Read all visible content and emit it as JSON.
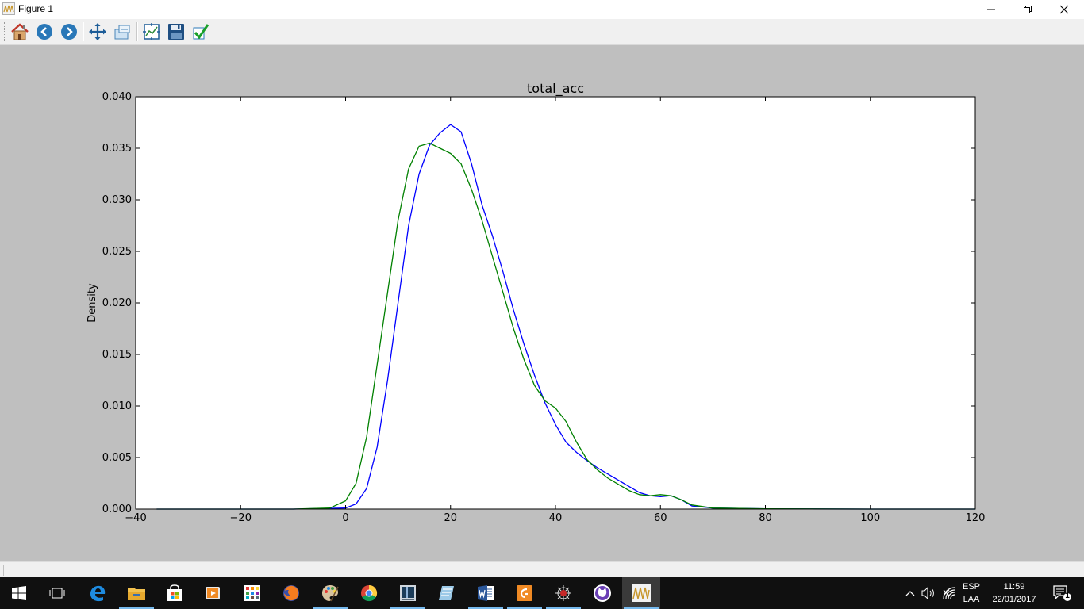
{
  "window": {
    "title": "Figure 1",
    "controls": {
      "minimize": "minimize-icon",
      "maximize": "restore-icon",
      "close": "close-icon"
    }
  },
  "toolbar": {
    "buttons": [
      {
        "name": "home",
        "icon": "home-icon"
      },
      {
        "name": "back",
        "icon": "back-arrow-icon"
      },
      {
        "name": "forward",
        "icon": "forward-arrow-icon"
      },
      {
        "name": "pan",
        "icon": "pan-arrows-icon"
      },
      {
        "name": "zoom",
        "icon": "zoom-rectangle-icon"
      },
      {
        "name": "subplots",
        "icon": "subplots-icon"
      },
      {
        "name": "save",
        "icon": "floppy-disk-icon"
      },
      {
        "name": "edit",
        "icon": "checkmark-icon"
      }
    ]
  },
  "chart_data": {
    "type": "line",
    "title": "total_acc",
    "xlabel": "",
    "ylabel": "Density",
    "xlim": [
      -40,
      120
    ],
    "ylim": [
      0.0,
      0.04
    ],
    "xticks": [
      "−40",
      "−20",
      "0",
      "20",
      "40",
      "60",
      "80",
      "100",
      "120"
    ],
    "yticks": [
      "0.000",
      "0.005",
      "0.010",
      "0.015",
      "0.020",
      "0.025",
      "0.030",
      "0.035",
      "0.040"
    ],
    "grid": false,
    "legend": false,
    "series": [
      {
        "color": "#0000ff",
        "x": [
          -36,
          -10,
          0,
          2,
          4,
          6,
          8,
          10,
          12,
          14,
          16,
          18,
          20,
          22,
          24,
          26,
          28,
          30,
          32,
          34,
          36,
          38,
          40,
          42,
          44,
          46,
          48,
          50,
          52,
          54,
          56,
          58,
          60,
          62,
          64,
          66,
          70,
          80,
          100,
          120
        ],
        "y": [
          0.0,
          0.0,
          0.0001,
          0.0005,
          0.002,
          0.006,
          0.0125,
          0.02,
          0.0275,
          0.0325,
          0.0353,
          0.0365,
          0.0373,
          0.0366,
          0.0335,
          0.0295,
          0.0265,
          0.023,
          0.0193,
          0.016,
          0.013,
          0.0103,
          0.0082,
          0.0065,
          0.0055,
          0.0047,
          0.004,
          0.0034,
          0.0028,
          0.0022,
          0.0016,
          0.0013,
          0.0012,
          0.0013,
          0.0009,
          0.0003,
          0.0001,
          2e-05,
          0.0,
          0.0
        ]
      },
      {
        "color": "#008000",
        "x": [
          -36,
          -10,
          -3,
          0,
          2,
          4,
          6,
          8,
          10,
          12,
          14,
          16,
          18,
          20,
          22,
          24,
          26,
          28,
          30,
          32,
          34,
          36,
          38,
          40,
          42,
          44,
          46,
          48,
          50,
          52,
          54,
          56,
          58,
          60,
          62,
          64,
          66,
          70,
          80,
          100,
          120
        ],
        "y": [
          0.0,
          0.0,
          0.0001,
          0.0008,
          0.0025,
          0.007,
          0.014,
          0.021,
          0.028,
          0.033,
          0.0352,
          0.0355,
          0.035,
          0.0345,
          0.0335,
          0.031,
          0.028,
          0.0245,
          0.021,
          0.0175,
          0.0145,
          0.012,
          0.0105,
          0.0098,
          0.0085,
          0.0065,
          0.0048,
          0.0038,
          0.003,
          0.0024,
          0.0018,
          0.0014,
          0.0013,
          0.0014,
          0.0013,
          0.0009,
          0.0004,
          0.0001,
          2e-05,
          0.0,
          0.0
        ]
      }
    ]
  },
  "statusbar": {
    "text": ""
  },
  "taskbar": {
    "apps": [
      {
        "name": "start",
        "icon": "windows-start-icon"
      },
      {
        "name": "task-view",
        "icon": "task-view-icon"
      },
      {
        "name": "edge",
        "icon": "edge-icon"
      },
      {
        "name": "file-explorer",
        "icon": "folder-icon"
      },
      {
        "name": "store",
        "icon": "store-icon"
      },
      {
        "name": "media-player",
        "icon": "media-player-icon"
      },
      {
        "name": "app-grid",
        "icon": "app-grid-icon"
      },
      {
        "name": "firefox",
        "icon": "firefox-icon"
      },
      {
        "name": "paint",
        "icon": "paint-palette-icon"
      },
      {
        "name": "chrome",
        "icon": "chrome-icon"
      },
      {
        "name": "ide",
        "icon": "ide-icon"
      },
      {
        "name": "notes",
        "icon": "notes-icon"
      },
      {
        "name": "word",
        "icon": "word-icon"
      },
      {
        "name": "pdf",
        "icon": "pdf-icon"
      },
      {
        "name": "spider",
        "icon": "spider-icon"
      },
      {
        "name": "cat",
        "icon": "cat-icon"
      },
      {
        "name": "figure",
        "icon": "figure-icon"
      }
    ],
    "tray": {
      "lang_top": "ESP",
      "lang_bottom": "LAA",
      "time": "11:59",
      "date": "22/01/2017",
      "notification_count": "1"
    }
  }
}
